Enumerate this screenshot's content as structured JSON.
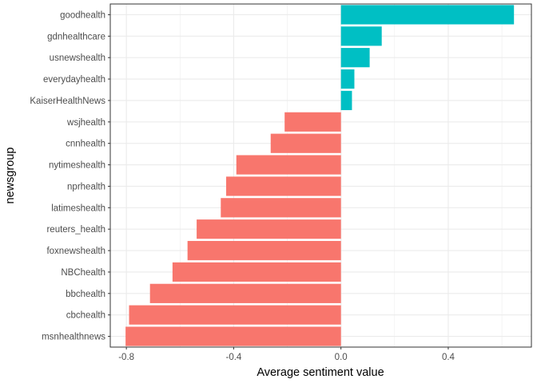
{
  "chart_data": {
    "type": "bar",
    "orientation": "horizontal",
    "xlabel": "Average sentiment value",
    "ylabel": "newsgroup",
    "xlim": [
      -0.86,
      0.71
    ],
    "x_ticks": [
      -0.8,
      -0.4,
      0.0,
      0.4
    ],
    "x_tick_labels": [
      "-0.8",
      "-0.4",
      "0.0",
      "0.4"
    ],
    "grid": true,
    "legend": "none",
    "colors": {
      "positive": "#00BFC4",
      "negative": "#F8766D",
      "grid": "#ebebeb",
      "border": "#333333"
    },
    "categories": [
      "goodhealth",
      "gdnhealthcare",
      "usnewshealth",
      "everydayhealth",
      "KaiserHealthNews",
      "wsjhealth",
      "cnnhealth",
      "nytimeshealth",
      "nprhealth",
      "latimeshealth",
      "reuters_health",
      "foxnewshealth",
      "NBChealth",
      "bbchealth",
      "cbchealth",
      "msnhealthnews"
    ],
    "values": [
      0.645,
      0.152,
      0.107,
      0.05,
      0.041,
      -0.21,
      -0.262,
      -0.39,
      -0.428,
      -0.448,
      -0.538,
      -0.572,
      -0.628,
      -0.712,
      -0.79,
      -0.803
    ]
  }
}
